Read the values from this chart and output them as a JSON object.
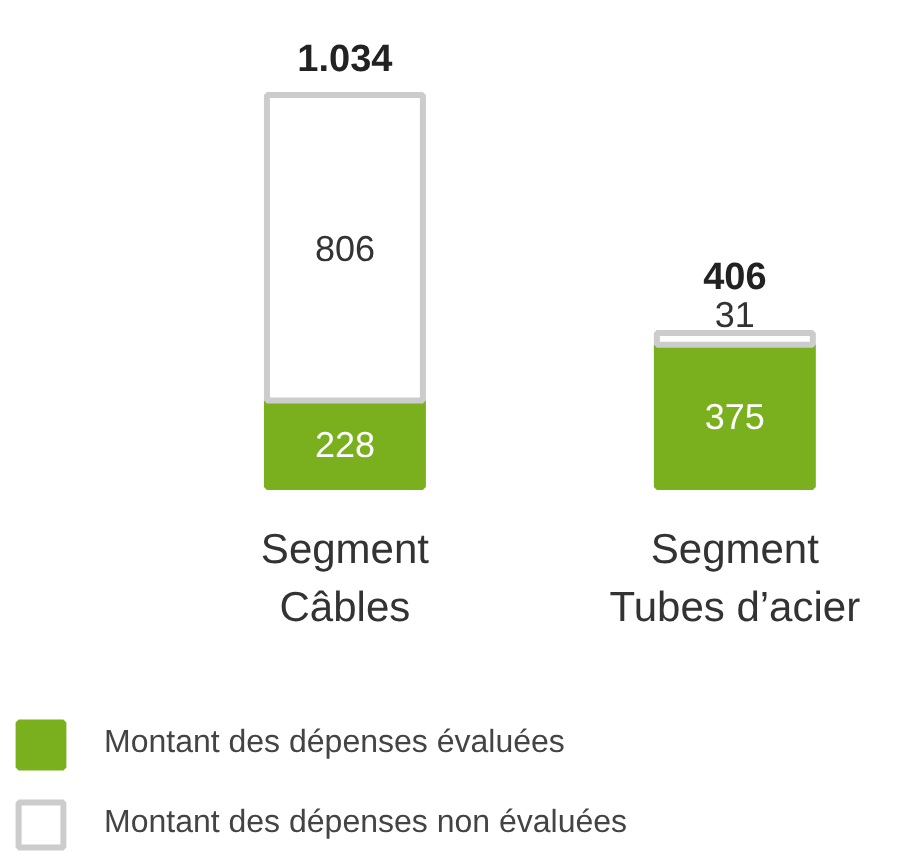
{
  "chart_data": {
    "type": "bar",
    "stacked": true,
    "data_labels": true,
    "legend": "bottom",
    "categories": [
      "Segment Câbles",
      "Segment Tubes d’acier"
    ],
    "series": [
      {
        "name": "Montant des dépenses évaluées",
        "color": "#7ab01e",
        "values": [
          228,
          375
        ]
      },
      {
        "name": "Montant des dépenses non évaluées",
        "color": "#ffffff",
        "values": [
          806,
          31
        ]
      }
    ],
    "totals": [
      "1.034",
      "406"
    ]
  }
}
